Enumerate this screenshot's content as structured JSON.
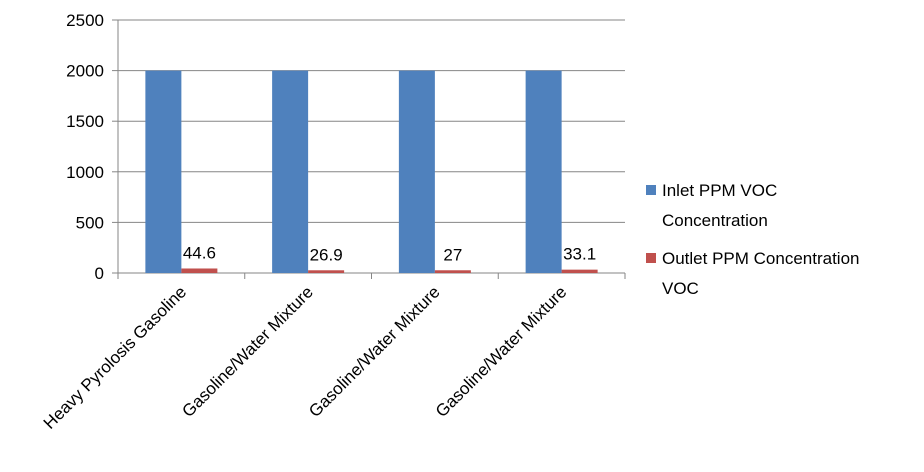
{
  "chart_data": {
    "type": "bar",
    "categories": [
      "Heavy Pyrolosis Gasoline",
      "Gasoline/Water Mixture",
      "Gasoline/Water Mixture",
      "Gasoline/Water Mixture"
    ],
    "series": [
      {
        "name": "Inlet PPM VOC Concentration",
        "legend_lines": [
          "Inlet PPM VOC",
          "Concentration"
        ],
        "color": "#4F81BD",
        "values": [
          2000,
          2000,
          2000,
          2000
        ],
        "data_labels": []
      },
      {
        "name": "Outlet PPM Concentration VOC",
        "legend_lines": [
          "Outlet PPM Concentration",
          "VOC"
        ],
        "color": "#C0504D",
        "values": [
          44.6,
          26.9,
          27,
          33.1
        ],
        "data_labels": [
          "44.6",
          "26.9",
          "27",
          "33.1"
        ]
      }
    ],
    "yticks": [
      "0",
      "500",
      "1000",
      "1500",
      "2000",
      "2500"
    ],
    "ylim": [
      0,
      2500
    ],
    "grid": true,
    "legend_position": "right",
    "title": "",
    "xlabel": "",
    "ylabel": ""
  }
}
